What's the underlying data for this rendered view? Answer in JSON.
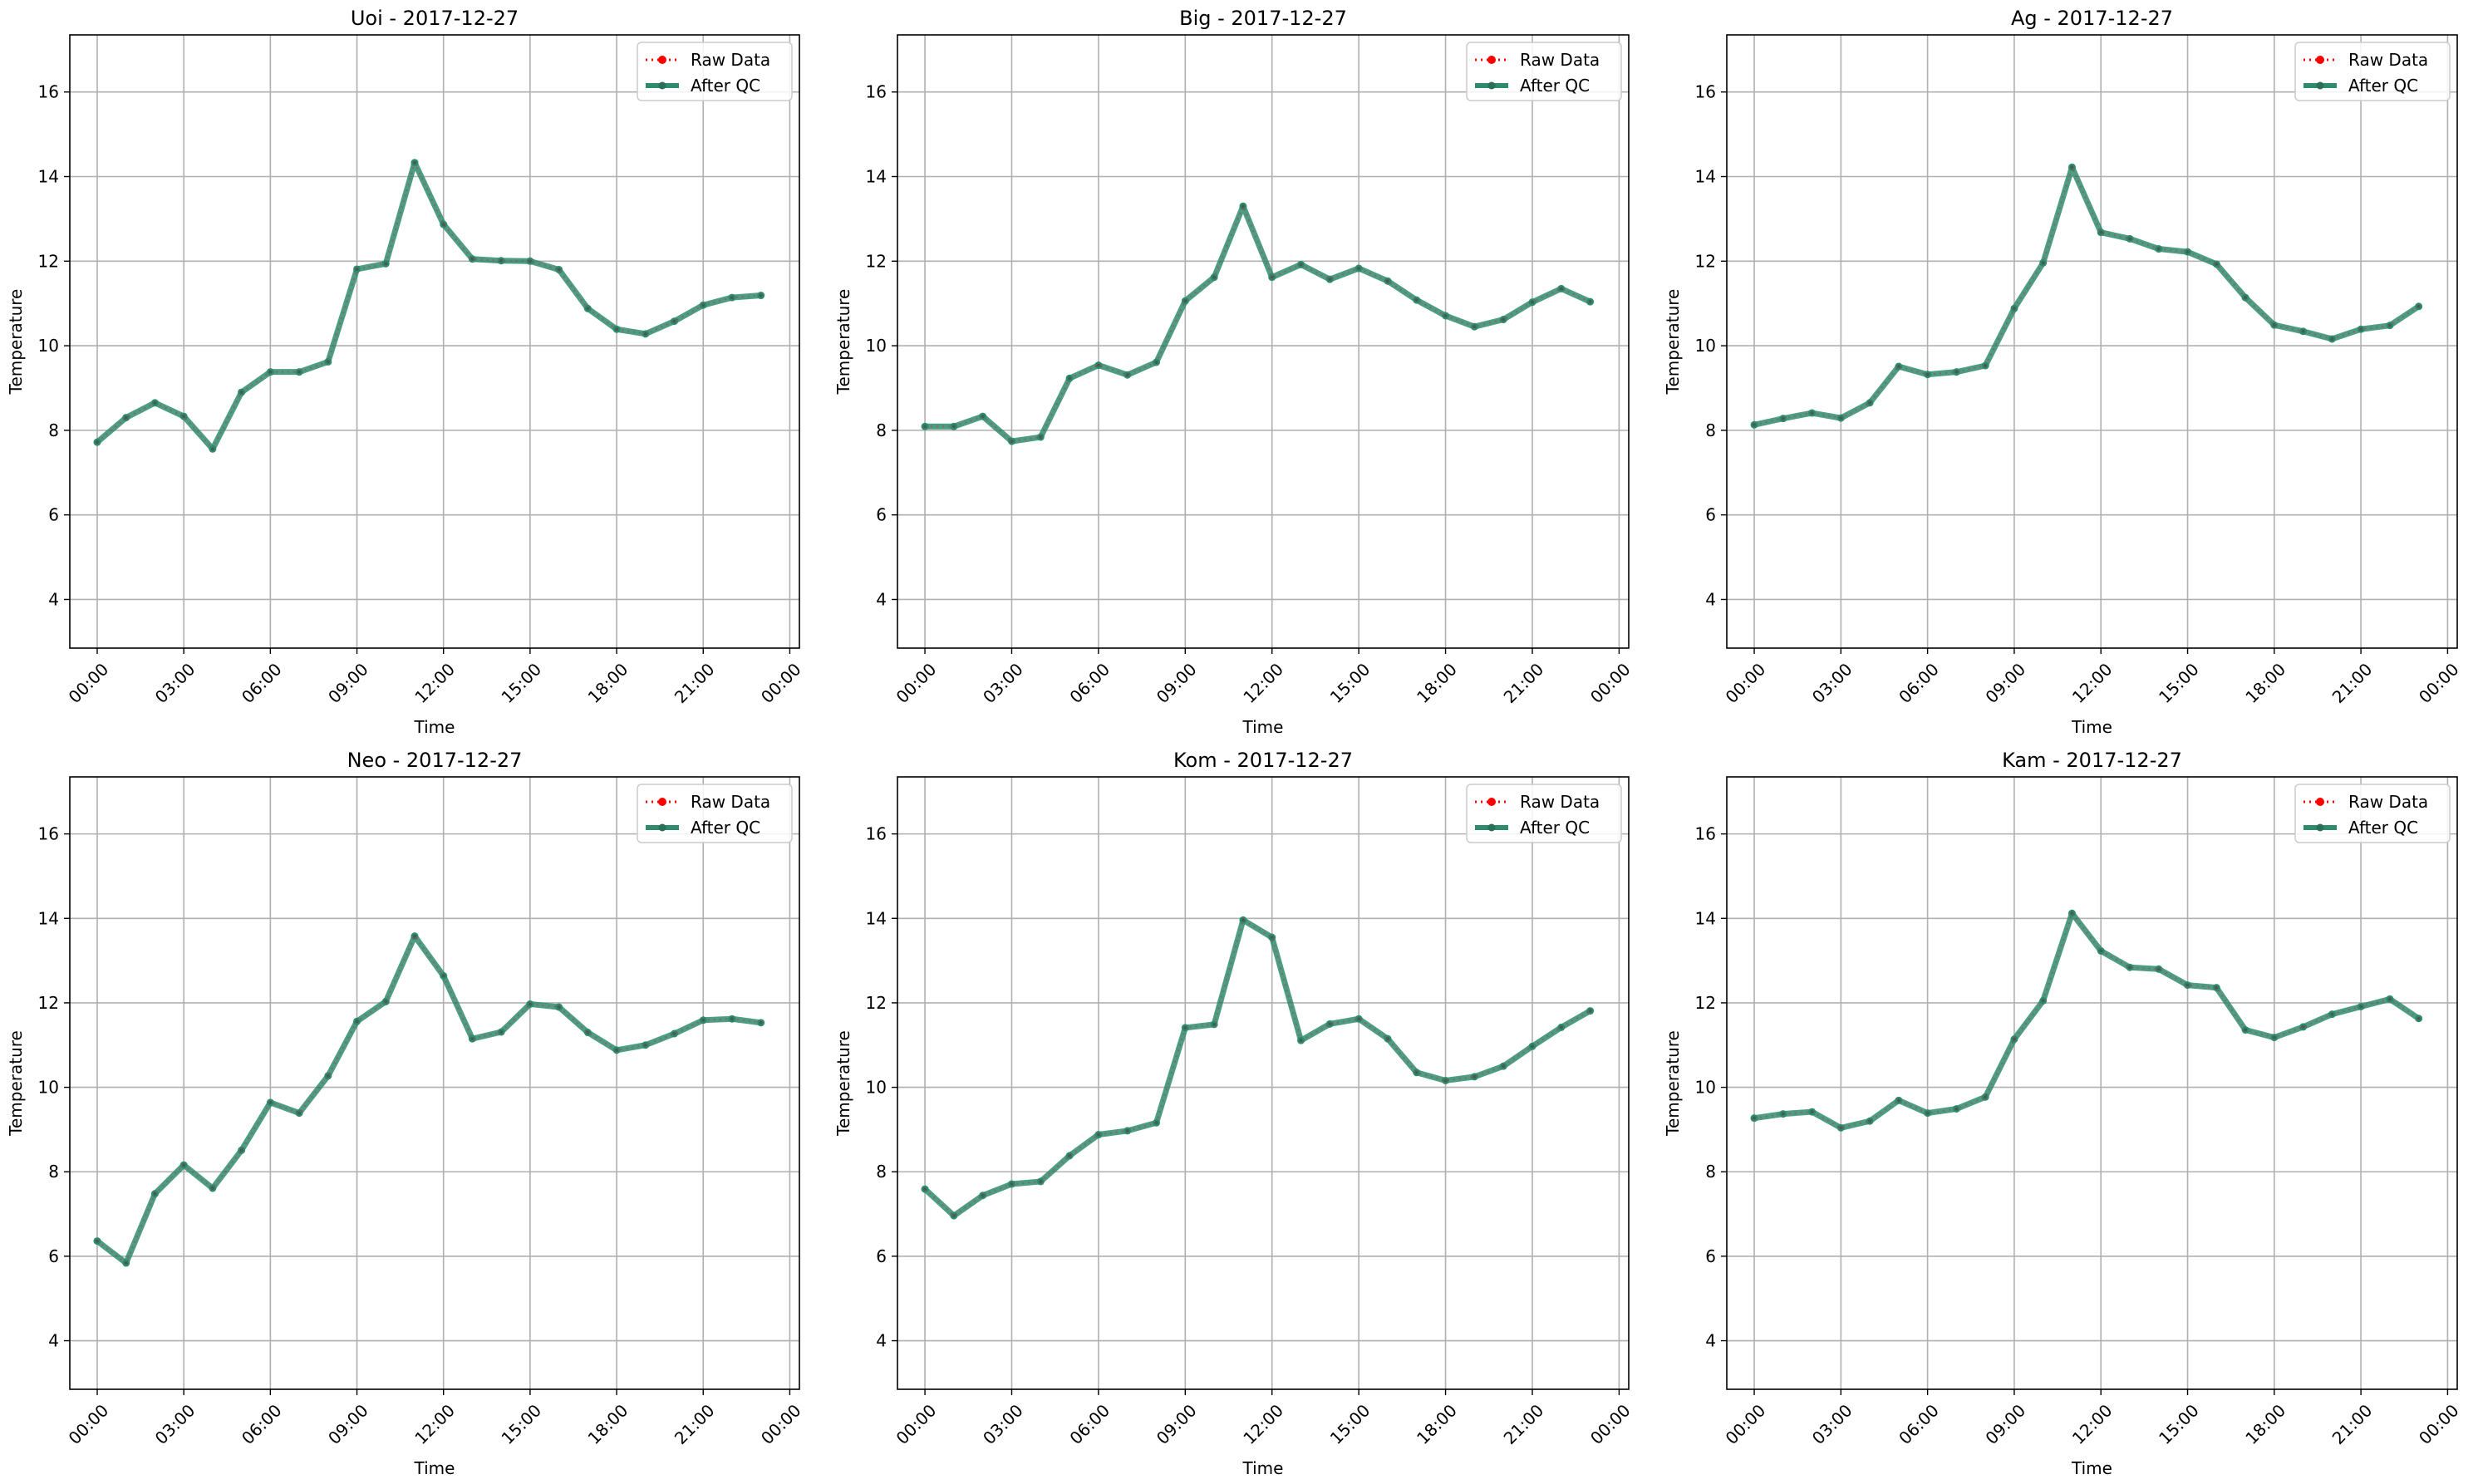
{
  "figure": {
    "x_tick_labels": [
      "00:00",
      "03:00",
      "06:00",
      "09:00",
      "12:00",
      "15:00",
      "18:00",
      "21:00",
      "00:00"
    ],
    "y_tick_labels": [
      "4",
      "6",
      "8",
      "10",
      "12",
      "14",
      "16"
    ],
    "legend_raw": "Raw Data",
    "legend_qc": "After QC",
    "raw_color": "#ff0000",
    "qc_color": "#2e8b6e"
  },
  "chart_data": [
    {
      "type": "line",
      "title": "Uoi - 2017-12-27",
      "xlabel": "Time",
      "ylabel": "Temperature",
      "x": [
        "00:00",
        "01:00",
        "02:00",
        "03:00",
        "04:00",
        "05:00",
        "06:00",
        "07:00",
        "08:00",
        "09:00",
        "10:00",
        "11:00",
        "12:00",
        "13:00",
        "14:00",
        "15:00",
        "16:00",
        "17:00",
        "18:00",
        "19:00",
        "20:00",
        "21:00",
        "22:00",
        "23:00"
      ],
      "xlim": [
        "2017-12-26 23:03",
        "2017-12-28 00:20"
      ],
      "ylim": [
        2.85,
        17.35
      ],
      "grid": true,
      "legend": "top-right",
      "series": [
        {
          "name": "Raw Data",
          "values": [
            7.72,
            8.3,
            8.65,
            8.33,
            7.56,
            8.9,
            9.38,
            9.38,
            9.62,
            11.81,
            11.94,
            14.33,
            12.87,
            12.05,
            12.01,
            12.0,
            11.8,
            10.88,
            10.39,
            10.28,
            10.58,
            10.96,
            11.14,
            11.19
          ]
        },
        {
          "name": "After QC",
          "values": [
            7.72,
            8.3,
            8.65,
            8.33,
            7.56,
            8.9,
            9.38,
            9.38,
            9.62,
            11.81,
            11.94,
            14.33,
            12.87,
            12.05,
            12.01,
            12.0,
            11.8,
            10.88,
            10.39,
            10.28,
            10.58,
            10.96,
            11.14,
            11.19
          ]
        }
      ]
    },
    {
      "type": "line",
      "title": "Big - 2017-12-27",
      "xlabel": "Time",
      "ylabel": "Temperature",
      "x": [
        "00:00",
        "01:00",
        "02:00",
        "03:00",
        "04:00",
        "05:00",
        "06:00",
        "07:00",
        "08:00",
        "09:00",
        "10:00",
        "11:00",
        "12:00",
        "13:00",
        "14:00",
        "15:00",
        "16:00",
        "17:00",
        "18:00",
        "19:00",
        "20:00",
        "21:00",
        "22:00",
        "23:00"
      ],
      "xlim": [
        "2017-12-26 23:03",
        "2017-12-28 00:20"
      ],
      "ylim": [
        2.85,
        17.35
      ],
      "grid": true,
      "legend": "top-right",
      "series": [
        {
          "name": "Raw Data",
          "values": [
            8.09,
            8.09,
            8.33,
            7.74,
            7.84,
            9.23,
            9.54,
            9.31,
            9.61,
            11.06,
            11.62,
            13.3,
            11.62,
            11.92,
            11.57,
            11.83,
            11.53,
            11.08,
            10.71,
            10.45,
            10.62,
            11.03,
            11.35,
            11.04
          ]
        },
        {
          "name": "After QC",
          "values": [
            8.09,
            8.09,
            8.33,
            7.74,
            7.84,
            9.23,
            9.54,
            9.31,
            9.61,
            11.06,
            11.62,
            13.3,
            11.62,
            11.92,
            11.57,
            11.83,
            11.53,
            11.08,
            10.71,
            10.45,
            10.62,
            11.03,
            11.35,
            11.04
          ]
        }
      ]
    },
    {
      "type": "line",
      "title": "Ag - 2017-12-27",
      "xlabel": "Time",
      "ylabel": "Temperature",
      "x": [
        "00:00",
        "01:00",
        "02:00",
        "03:00",
        "04:00",
        "05:00",
        "06:00",
        "07:00",
        "08:00",
        "09:00",
        "10:00",
        "11:00",
        "12:00",
        "13:00",
        "14:00",
        "15:00",
        "16:00",
        "17:00",
        "18:00",
        "19:00",
        "20:00",
        "21:00",
        "22:00",
        "23:00"
      ],
      "xlim": [
        "2017-12-26 23:03",
        "2017-12-28 00:20"
      ],
      "ylim": [
        2.85,
        17.35
      ],
      "grid": true,
      "legend": "top-right",
      "series": [
        {
          "name": "Raw Data",
          "values": [
            8.13,
            8.28,
            8.41,
            8.29,
            8.65,
            9.51,
            9.32,
            9.38,
            9.53,
            10.88,
            11.96,
            14.22,
            12.68,
            12.53,
            12.29,
            12.22,
            11.93,
            11.14,
            10.49,
            10.34,
            10.16,
            10.39,
            10.48,
            10.93
          ]
        },
        {
          "name": "After QC",
          "values": [
            8.13,
            8.28,
            8.41,
            8.29,
            8.65,
            9.51,
            9.32,
            9.38,
            9.53,
            10.88,
            11.96,
            14.22,
            12.68,
            12.53,
            12.29,
            12.22,
            11.93,
            11.14,
            10.49,
            10.34,
            10.16,
            10.39,
            10.48,
            10.93
          ]
        }
      ]
    },
    {
      "type": "line",
      "title": "Neo - 2017-12-27",
      "xlabel": "Time",
      "ylabel": "Temperature",
      "x": [
        "00:00",
        "01:00",
        "02:00",
        "03:00",
        "04:00",
        "05:00",
        "06:00",
        "07:00",
        "08:00",
        "09:00",
        "10:00",
        "11:00",
        "12:00",
        "13:00",
        "14:00",
        "15:00",
        "16:00",
        "17:00",
        "18:00",
        "19:00",
        "20:00",
        "21:00",
        "22:00",
        "23:00"
      ],
      "xlim": [
        "2017-12-26 23:03",
        "2017-12-28 00:20"
      ],
      "ylim": [
        2.85,
        17.35
      ],
      "grid": true,
      "legend": "top-right",
      "series": [
        {
          "name": "Raw Data",
          "values": [
            6.36,
            5.84,
            7.48,
            8.16,
            7.61,
            8.51,
            9.64,
            9.39,
            10.27,
            11.56,
            12.03,
            13.58,
            12.64,
            11.15,
            11.31,
            11.97,
            11.9,
            11.3,
            10.88,
            11.0,
            11.27,
            11.59,
            11.62,
            11.53
          ]
        },
        {
          "name": "After QC",
          "values": [
            6.36,
            5.84,
            7.48,
            8.16,
            7.61,
            8.51,
            9.64,
            9.39,
            10.27,
            11.56,
            12.03,
            13.58,
            12.64,
            11.15,
            11.31,
            11.97,
            11.9,
            11.3,
            10.88,
            11.0,
            11.27,
            11.59,
            11.62,
            11.53
          ]
        }
      ]
    },
    {
      "type": "line",
      "title": "Kom - 2017-12-27",
      "xlabel": "Time",
      "ylabel": "Temperature",
      "x": [
        "00:00",
        "01:00",
        "02:00",
        "03:00",
        "04:00",
        "05:00",
        "06:00",
        "07:00",
        "08:00",
        "09:00",
        "10:00",
        "11:00",
        "12:00",
        "13:00",
        "14:00",
        "15:00",
        "16:00",
        "17:00",
        "18:00",
        "19:00",
        "20:00",
        "21:00",
        "22:00",
        "23:00"
      ],
      "xlim": [
        "2017-12-26 23:03",
        "2017-12-28 00:20"
      ],
      "ylim": [
        2.85,
        17.35
      ],
      "grid": true,
      "legend": "top-right",
      "series": [
        {
          "name": "Raw Data",
          "values": [
            7.59,
            6.96,
            7.44,
            7.71,
            7.77,
            8.38,
            8.88,
            8.97,
            9.16,
            11.41,
            11.49,
            13.96,
            13.55,
            11.11,
            11.5,
            11.62,
            11.15,
            10.35,
            10.16,
            10.25,
            10.5,
            10.97,
            11.42,
            11.81
          ]
        },
        {
          "name": "After QC",
          "values": [
            7.59,
            6.96,
            7.44,
            7.71,
            7.77,
            8.38,
            8.88,
            8.97,
            9.16,
            11.41,
            11.49,
            13.96,
            13.55,
            11.11,
            11.5,
            11.62,
            11.15,
            10.35,
            10.16,
            10.25,
            10.5,
            10.97,
            11.42,
            11.81
          ]
        }
      ]
    },
    {
      "type": "line",
      "title": "Kam - 2017-12-27",
      "xlabel": "Time",
      "ylabel": "Temperature",
      "x": [
        "00:00",
        "01:00",
        "02:00",
        "03:00",
        "04:00",
        "05:00",
        "06:00",
        "07:00",
        "08:00",
        "09:00",
        "10:00",
        "11:00",
        "12:00",
        "13:00",
        "14:00",
        "15:00",
        "16:00",
        "17:00",
        "18:00",
        "19:00",
        "20:00",
        "21:00",
        "22:00",
        "23:00"
      ],
      "xlim": [
        "2017-12-26 23:03",
        "2017-12-28 00:20"
      ],
      "ylim": [
        2.85,
        17.35
      ],
      "grid": true,
      "legend": "top-right",
      "series": [
        {
          "name": "Raw Data",
          "values": [
            9.27,
            9.37,
            9.42,
            9.04,
            9.2,
            9.69,
            9.39,
            9.49,
            9.77,
            11.14,
            12.05,
            14.12,
            13.23,
            12.84,
            12.8,
            12.42,
            12.36,
            11.36,
            11.18,
            11.43,
            11.73,
            11.91,
            12.09,
            11.63
          ]
        },
        {
          "name": "After QC",
          "values": [
            9.27,
            9.37,
            9.42,
            9.04,
            9.2,
            9.69,
            9.39,
            9.49,
            9.77,
            11.14,
            12.05,
            14.12,
            13.23,
            12.84,
            12.8,
            12.42,
            12.36,
            11.36,
            11.18,
            11.43,
            11.73,
            11.91,
            12.09,
            11.63
          ]
        }
      ]
    }
  ]
}
